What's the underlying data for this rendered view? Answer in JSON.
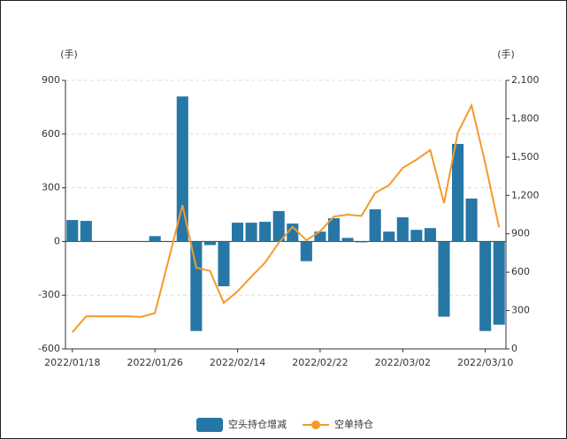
{
  "chart_data": {
    "type": "bar_line",
    "y_unit": "(手)",
    "y2_unit": "(手)",
    "categories": [
      "2022/01/18",
      null,
      null,
      null,
      null,
      null,
      "2022/01/26",
      null,
      null,
      null,
      null,
      null,
      "2022/02/14",
      null,
      null,
      null,
      null,
      null,
      "2022/02/22",
      null,
      null,
      null,
      null,
      null,
      "2022/03/02",
      null,
      null,
      null,
      null,
      null,
      "2022/03/10",
      null
    ],
    "series": [
      {
        "name": "空头持仓增减",
        "color": "#2677a6",
        "type": "bar",
        "values": [
          120,
          115,
          0,
          0,
          0,
          0,
          30,
          0,
          810,
          -500,
          -20,
          -250,
          105,
          105,
          110,
          170,
          100,
          -110,
          55,
          130,
          20,
          -5,
          180,
          55,
          135,
          65,
          75,
          -420,
          545,
          240,
          -500,
          -465
        ]
      },
      {
        "name": "空单持仓",
        "color": "#f39a2b",
        "type": "line",
        "axis": "y2",
        "values": [
          130,
          255,
          255,
          255,
          255,
          250,
          280,
          700,
          1125,
          635,
          610,
          360,
          450,
          565,
          675,
          830,
          955,
          850,
          920,
          1035,
          1050,
          1040,
          1220,
          1280,
          1415,
          1480,
          1555,
          1140,
          1690,
          1905,
          1450,
          950
        ]
      }
    ],
    "ylim": [
      -600,
      900
    ],
    "yticks": [
      -600,
      -300,
      0,
      300,
      600,
      900
    ],
    "y2lim": [
      0,
      2100
    ],
    "y2ticks": [
      0,
      300,
      600,
      900,
      {
        "value": 1200,
        "label": "1,200"
      },
      {
        "value": 1500,
        "label": "1,500"
      },
      {
        "value": 1800,
        "label": "1,800"
      },
      {
        "value": 2100,
        "label": "2,100"
      }
    ],
    "grid": true,
    "legend": "bottom"
  }
}
